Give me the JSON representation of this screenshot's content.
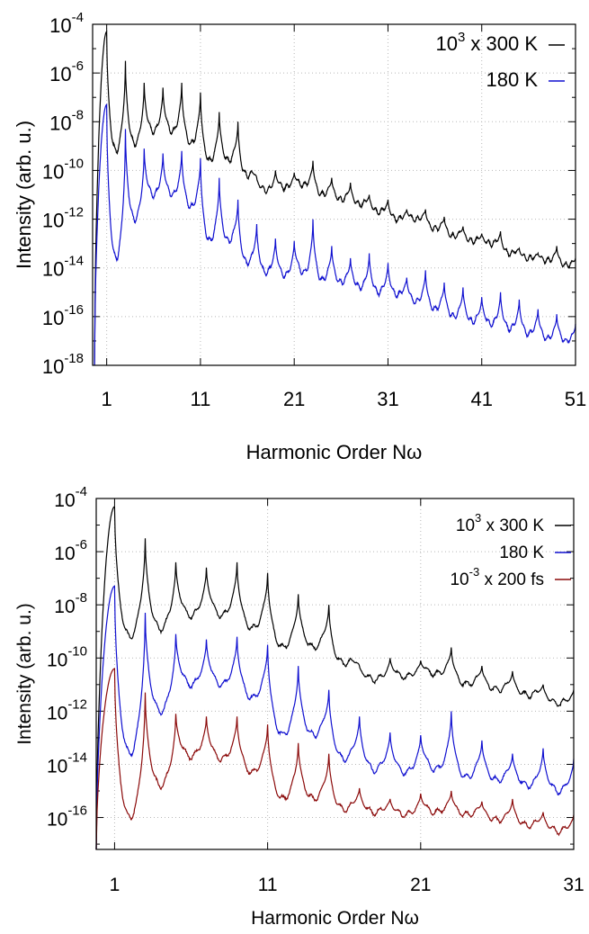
{
  "chart_data": [
    {
      "type": "line",
      "title": "",
      "xlabel": "Harmonic Order Nω",
      "ylabel": "Intensity (arb. u.)",
      "xlim": [
        -0.5,
        51
      ],
      "ylim_log10": [
        -18,
        -4
      ],
      "y_scale": "log",
      "xticks": [
        1,
        11,
        21,
        31,
        41,
        51
      ],
      "xtick_labels": [
        "1",
        "11",
        "21",
        "31",
        "41",
        "51"
      ],
      "yticks_exp": [
        -4,
        -6,
        -8,
        -10,
        -12,
        -14,
        -16,
        -18
      ],
      "ytick_labels": [
        "10",
        "10",
        "10",
        "10",
        "10",
        "10",
        "10",
        "10"
      ],
      "ytick_exponents": [
        "-4",
        "-6",
        "-8",
        "-10",
        "-12",
        "-14",
        "-16",
        "-18"
      ],
      "grid": true,
      "legend_position": "top-right",
      "series": [
        {
          "name": "10³ x 300 K",
          "legend_base": "10",
          "legend_exp": "3",
          "legend_rest": " x 300 K",
          "color": "#000000",
          "peak_orders": [
            1,
            3,
            5,
            7,
            9,
            11,
            13,
            15,
            17,
            19,
            21,
            23,
            25,
            27,
            29,
            31,
            33,
            35,
            37,
            39,
            41,
            43,
            45,
            47,
            49,
            51
          ],
          "peak_log10": [
            -4.3,
            -5.5,
            -6.4,
            -6.6,
            -6.4,
            -6.8,
            -7.6,
            -8.0,
            -10.3,
            -10.0,
            -10.1,
            -9.6,
            -10.3,
            -10.5,
            -11.0,
            -11.2,
            -11.6,
            -11.6,
            -11.9,
            -12.3,
            -12.6,
            -12.5,
            -13.2,
            -13.4,
            -13.1,
            -13.6
          ],
          "valley_log10": [
            -9.2,
            -8.9,
            -8.4,
            -8.4,
            -8.9,
            -9.6,
            -9.6,
            -10.2,
            -10.8,
            -10.7,
            -10.6,
            -11.0,
            -11.2,
            -11.4,
            -11.7,
            -12.0,
            -12.0,
            -12.4,
            -12.7,
            -12.9,
            -13.0,
            -13.4,
            -13.6,
            -13.7,
            -13.9
          ]
        },
        {
          "name": "180 K",
          "legend_base": "",
          "legend_exp": "",
          "legend_rest": "180 K",
          "color": "#1010d0",
          "peak_orders": [
            1,
            3,
            5,
            7,
            9,
            11,
            13,
            15,
            17,
            19,
            21,
            23,
            25,
            27,
            29,
            31,
            33,
            35,
            37,
            39,
            41,
            43,
            45,
            47,
            49,
            51
          ],
          "peak_log10": [
            -7.3,
            -8.3,
            -9.1,
            -9.3,
            -9.2,
            -9.5,
            -10.3,
            -11.2,
            -12.2,
            -12.8,
            -12.9,
            -12.0,
            -13.1,
            -13.6,
            -13.4,
            -13.8,
            -14.4,
            -14.1,
            -14.6,
            -14.8,
            -15.2,
            -15.0,
            -15.3,
            -15.7,
            -15.9,
            -16.3
          ],
          "valley_log10": [
            -13.6,
            -12.0,
            -11.0,
            -11.0,
            -11.5,
            -12.9,
            -12.9,
            -13.8,
            -14.2,
            -14.3,
            -14.2,
            -14.5,
            -14.6,
            -14.8,
            -15.0,
            -15.1,
            -15.4,
            -15.7,
            -16.0,
            -16.2,
            -16.3,
            -16.5,
            -16.7,
            -16.9,
            -17.0
          ]
        }
      ]
    },
    {
      "type": "line",
      "title": "",
      "xlabel": "Harmonic Order Nω",
      "ylabel": "Intensity (arb. u.)",
      "xlim": [
        -0.2,
        31
      ],
      "ylim_log10": [
        -17.2,
        -4
      ],
      "y_scale": "log",
      "xticks": [
        1,
        11,
        21,
        31
      ],
      "xtick_labels": [
        "1",
        "11",
        "21",
        "31"
      ],
      "yticks_exp": [
        -4,
        -6,
        -8,
        -10,
        -12,
        -14,
        -16
      ],
      "ytick_labels": [
        "10",
        "10",
        "10",
        "10",
        "10",
        "10",
        "10"
      ],
      "ytick_exponents": [
        "-4",
        "-6",
        "-8",
        "-10",
        "-12",
        "-14",
        "-16"
      ],
      "grid": true,
      "legend_position": "top-right",
      "series": [
        {
          "name": "10³ x 300 K",
          "legend_base": "10",
          "legend_exp": "3",
          "legend_rest": " x 300 K",
          "color": "#000000",
          "peak_orders": [
            1,
            3,
            5,
            7,
            9,
            11,
            13,
            15,
            17,
            19,
            21,
            23,
            25,
            27,
            29,
            31
          ],
          "peak_log10": [
            -4.3,
            -5.5,
            -6.4,
            -6.6,
            -6.4,
            -6.8,
            -7.6,
            -8.0,
            -10.3,
            -10.0,
            -10.1,
            -9.6,
            -10.3,
            -10.5,
            -11.0,
            -11.2
          ],
          "valley_log10": [
            -9.2,
            -8.9,
            -8.4,
            -8.4,
            -8.9,
            -9.6,
            -9.6,
            -10.2,
            -10.8,
            -10.7,
            -10.6,
            -11.0,
            -11.2,
            -11.4,
            -11.7
          ]
        },
        {
          "name": "180 K",
          "legend_base": "",
          "legend_exp": "",
          "legend_rest": "180 K",
          "color": "#1010d0",
          "peak_orders": [
            1,
            3,
            5,
            7,
            9,
            11,
            13,
            15,
            17,
            19,
            21,
            23,
            25,
            27,
            29,
            31
          ],
          "peak_log10": [
            -7.3,
            -8.3,
            -9.1,
            -9.3,
            -9.2,
            -9.5,
            -10.3,
            -11.2,
            -12.2,
            -12.8,
            -12.9,
            -12.0,
            -13.1,
            -13.6,
            -13.4,
            -13.8
          ],
          "valley_log10": [
            -13.6,
            -12.0,
            -11.0,
            -11.0,
            -11.5,
            -12.9,
            -12.9,
            -13.8,
            -14.2,
            -14.3,
            -14.2,
            -14.5,
            -14.6,
            -14.8,
            -15.0
          ]
        },
        {
          "name": "10⁻³ x 200 fs",
          "legend_base": "10",
          "legend_exp": "-3",
          "legend_rest": " x 200 fs",
          "color": "#8b0a0a",
          "peak_orders": [
            1,
            3,
            5,
            7,
            9,
            11,
            13,
            15,
            17,
            19,
            21,
            23,
            25,
            27,
            29,
            31
          ],
          "peak_log10": [
            -10.4,
            -11.3,
            -12.1,
            -12.2,
            -12.2,
            -12.5,
            -13.2,
            -13.6,
            -14.9,
            -15.3,
            -15.1,
            -15.0,
            -15.4,
            -15.3,
            -15.8,
            -15.9
          ],
          "valley_log10": [
            -16.0,
            -14.8,
            -13.7,
            -13.8,
            -14.3,
            -15.3,
            -15.3,
            -15.7,
            -15.8,
            -15.9,
            -15.8,
            -15.9,
            -16.1,
            -16.3,
            -16.5
          ]
        }
      ]
    }
  ]
}
